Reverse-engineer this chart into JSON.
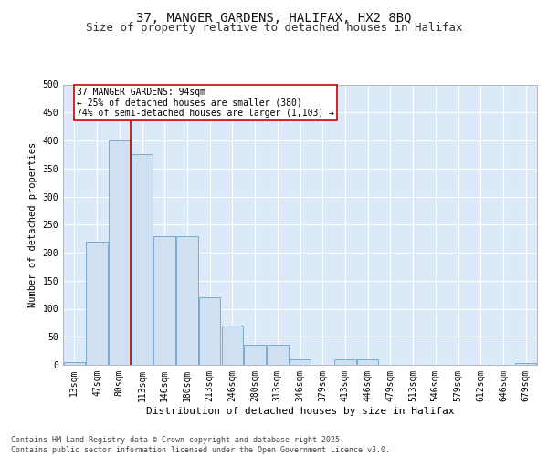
{
  "title1": "37, MANGER GARDENS, HALIFAX, HX2 8BQ",
  "title2": "Size of property relative to detached houses in Halifax",
  "xlabel": "Distribution of detached houses by size in Halifax",
  "ylabel": "Number of detached properties",
  "categories": [
    "13sqm",
    "47sqm",
    "80sqm",
    "113sqm",
    "146sqm",
    "180sqm",
    "213sqm",
    "246sqm",
    "280sqm",
    "313sqm",
    "346sqm",
    "379sqm",
    "413sqm",
    "446sqm",
    "479sqm",
    "513sqm",
    "546sqm",
    "579sqm",
    "612sqm",
    "646sqm",
    "679sqm"
  ],
  "values": [
    5,
    220,
    400,
    375,
    230,
    230,
    120,
    70,
    35,
    35,
    10,
    0,
    10,
    10,
    0,
    0,
    0,
    0,
    0,
    0,
    3
  ],
  "bar_color": "#cfe0f0",
  "bar_edge_color": "#7aacce",
  "vline_color": "#cc0000",
  "vline_pos": 2.5,
  "annotation_text": "37 MANGER GARDENS: 94sqm\n← 25% of detached houses are smaller (380)\n74% of semi-detached houses are larger (1,103) →",
  "annotation_box_facecolor": "#ffffff",
  "annotation_box_edgecolor": "#cc0000",
  "ylim": [
    0,
    500
  ],
  "yticks": [
    0,
    50,
    100,
    150,
    200,
    250,
    300,
    350,
    400,
    450,
    500
  ],
  "footer": "Contains HM Land Registry data © Crown copyright and database right 2025.\nContains public sector information licensed under the Open Government Licence v3.0.",
  "bg_color": "#dce9f8",
  "grid_color": "#ffffff",
  "title1_fontsize": 10,
  "title2_fontsize": 9,
  "xlabel_fontsize": 8,
  "ylabel_fontsize": 7.5,
  "tick_fontsize": 7,
  "footer_fontsize": 6,
  "ann_fontsize": 7
}
